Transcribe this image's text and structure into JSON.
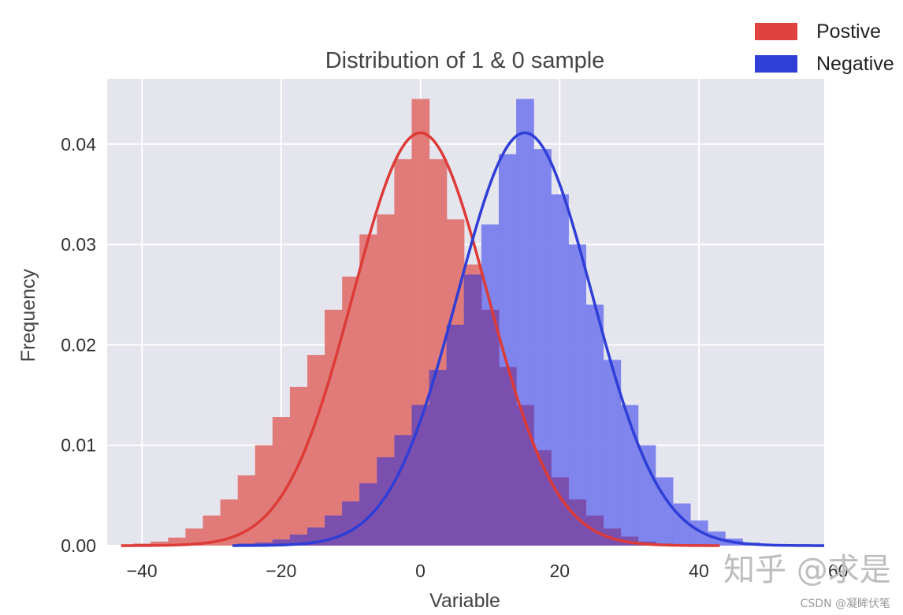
{
  "chart_data": {
    "type": "histogram",
    "title": "Distribution of 1 & 0 sample",
    "xlabel": "Variable",
    "ylabel": "Frequency",
    "xlim": [
      -45,
      58
    ],
    "ylim": [
      0,
      0.0465
    ],
    "x_ticks": [
      -40,
      -20,
      0,
      20,
      40,
      60
    ],
    "x_tick_labels": [
      "−40",
      "−20",
      "0",
      "20",
      "40",
      "60"
    ],
    "y_ticks": [
      0.0,
      0.01,
      0.02,
      0.03,
      0.04
    ],
    "y_tick_labels": [
      "0.00",
      "0.01",
      "0.02",
      "0.03",
      "0.04"
    ],
    "grid": true,
    "legend_position": "top-right, outside plot",
    "colors": {
      "background": "#e5e5ee",
      "grid": "#ffffff",
      "positive_bar": "#e07572",
      "positive_line": "#dd3b37",
      "negative_bar": "#7a80ec",
      "negative_line": "#2e3ed6",
      "overlap": "#7a4fae"
    },
    "bin_width": 2.5,
    "series": [
      {
        "name": "Postive",
        "kde_mean": 0,
        "kde_std": 9.7,
        "kde_range": [
          -43,
          43
        ],
        "bins": [
          {
            "x": -40.0,
            "y": 0.0002
          },
          {
            "x": -37.5,
            "y": 0.0004
          },
          {
            "x": -35.0,
            "y": 0.0008
          },
          {
            "x": -32.5,
            "y": 0.0017
          },
          {
            "x": -30.0,
            "y": 0.003
          },
          {
            "x": -27.5,
            "y": 0.0046
          },
          {
            "x": -25.0,
            "y": 0.007
          },
          {
            "x": -22.5,
            "y": 0.01
          },
          {
            "x": -20.0,
            "y": 0.0128
          },
          {
            "x": -17.5,
            "y": 0.0158
          },
          {
            "x": -15.0,
            "y": 0.019
          },
          {
            "x": -12.5,
            "y": 0.0235
          },
          {
            "x": -10.0,
            "y": 0.0268
          },
          {
            "x": -7.5,
            "y": 0.031
          },
          {
            "x": -5.0,
            "y": 0.033
          },
          {
            "x": -2.5,
            "y": 0.0385
          },
          {
            "x": 0.0,
            "y": 0.0445
          },
          {
            "x": 2.5,
            "y": 0.0385
          },
          {
            "x": 5.0,
            "y": 0.0325
          },
          {
            "x": 7.5,
            "y": 0.028
          },
          {
            "x": 10.0,
            "y": 0.0235
          },
          {
            "x": 12.5,
            "y": 0.0178
          },
          {
            "x": 15.0,
            "y": 0.014
          },
          {
            "x": 17.5,
            "y": 0.0095
          },
          {
            "x": 20.0,
            "y": 0.0068
          },
          {
            "x": 22.5,
            "y": 0.0046
          },
          {
            "x": 25.0,
            "y": 0.003
          },
          {
            "x": 27.5,
            "y": 0.0017
          },
          {
            "x": 30.0,
            "y": 0.0009
          },
          {
            "x": 32.5,
            "y": 0.0004
          },
          {
            "x": 35.0,
            "y": 0.0002
          }
        ]
      },
      {
        "name": "Negative",
        "kde_mean": 15,
        "kde_std": 9.7,
        "kde_range": [
          -27,
          58
        ],
        "bins": [
          {
            "x": -25.0,
            "y": 0.0002
          },
          {
            "x": -22.5,
            "y": 0.0003
          },
          {
            "x": -20.0,
            "y": 0.0006
          },
          {
            "x": -17.5,
            "y": 0.0011
          },
          {
            "x": -15.0,
            "y": 0.0018
          },
          {
            "x": -12.5,
            "y": 0.003
          },
          {
            "x": -10.0,
            "y": 0.0044
          },
          {
            "x": -7.5,
            "y": 0.0062
          },
          {
            "x": -5.0,
            "y": 0.0088
          },
          {
            "x": -2.5,
            "y": 0.011
          },
          {
            "x": 0.0,
            "y": 0.014
          },
          {
            "x": 2.5,
            "y": 0.0175
          },
          {
            "x": 5.0,
            "y": 0.022
          },
          {
            "x": 7.5,
            "y": 0.027
          },
          {
            "x": 10.0,
            "y": 0.032
          },
          {
            "x": 12.5,
            "y": 0.039
          },
          {
            "x": 15.0,
            "y": 0.0445
          },
          {
            "x": 17.5,
            "y": 0.0395
          },
          {
            "x": 20.0,
            "y": 0.035
          },
          {
            "x": 22.5,
            "y": 0.03
          },
          {
            "x": 25.0,
            "y": 0.024
          },
          {
            "x": 27.5,
            "y": 0.0185
          },
          {
            "x": 30.0,
            "y": 0.014
          },
          {
            "x": 32.5,
            "y": 0.01
          },
          {
            "x": 35.0,
            "y": 0.0068
          },
          {
            "x": 37.5,
            "y": 0.0042
          },
          {
            "x": 40.0,
            "y": 0.0025
          },
          {
            "x": 42.5,
            "y": 0.0014
          },
          {
            "x": 45.0,
            "y": 0.0007
          },
          {
            "x": 47.5,
            "y": 0.0003
          },
          {
            "x": 50.0,
            "y": 0.0001
          }
        ]
      }
    ]
  },
  "watermark": {
    "zhihu": "知乎 @求是",
    "csdn": "CSDN @凝眸伏笔"
  }
}
